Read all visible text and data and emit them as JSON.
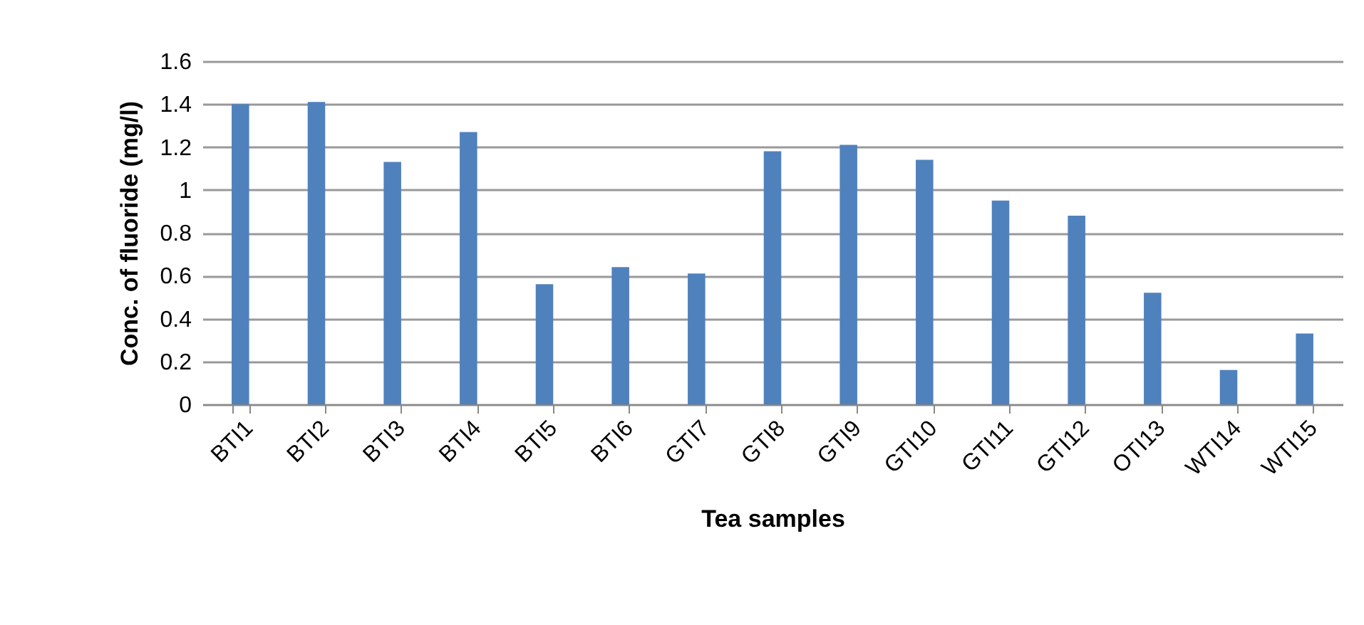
{
  "chart_data": {
    "type": "bar",
    "xlabel": "Tea samples",
    "ylabel": "Conc. of fluoride (mg/l)",
    "categories": [
      "BTI1",
      "BTI2",
      "BTI3",
      "BTI4",
      "BTI5",
      "BTI6",
      "GTI7",
      "GTI8",
      "GTI9",
      "GTI10",
      "GTI11",
      "GTI12",
      "OTI13",
      "WTI14",
      "WTI15"
    ],
    "values": [
      1.4,
      1.41,
      1.13,
      1.27,
      0.56,
      0.64,
      0.61,
      1.18,
      1.21,
      1.14,
      0.95,
      0.88,
      0.52,
      0.16,
      0.33
    ],
    "color": "#4f81bd",
    "ylim": [
      0,
      1.6
    ],
    "yticks": [
      0,
      0.2,
      0.4,
      0.6,
      0.8,
      1,
      1.2,
      1.4,
      1.6
    ],
    "grid": "y"
  }
}
